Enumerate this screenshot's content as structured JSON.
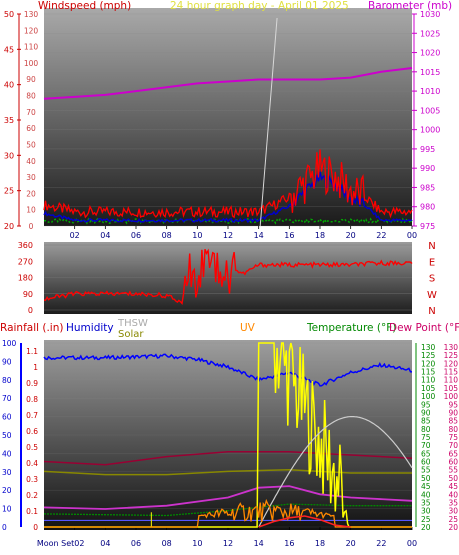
{
  "header": {
    "left_title": "Windspeed (mph)",
    "center_title": "24 hour graph day - April 01 2025",
    "right_title": "Barometer (mb)"
  },
  "legend": {
    "rainfall": "Rainfall (.in)",
    "humidity": "Humidity",
    "thsw": "THSW",
    "solar": "Solar",
    "uv": "UV",
    "temperature": "Temperature (°F)",
    "dewpoint": "Dew Point (°F)"
  },
  "colors": {
    "windspeed": "#ff0000",
    "gust": "#0000cc",
    "barometer": "#cc00cc",
    "winddir": "#ff0000",
    "humidity": "#0000ff",
    "solar": "#ffff00",
    "uv": "#ff8800",
    "temperature": "#008800",
    "dewpoint": "#cc0066"
  },
  "chart_data": [
    {
      "type": "line",
      "name": "wind-barometer",
      "x_ticks": [
        "02",
        "04",
        "06",
        "08",
        "10",
        "12",
        "14",
        "16",
        "18",
        "20",
        "22",
        "00"
      ],
      "left_axis": {
        "label": "Windspeed (mph)",
        "ticks": [
          20,
          25,
          30,
          35,
          40,
          45,
          50
        ],
        "secondary_ticks": [
          0,
          10,
          20,
          30,
          40,
          50,
          60,
          70,
          80,
          90,
          100,
          110,
          120,
          130
        ]
      },
      "right_axis": {
        "label": "Barometer (mb)",
        "ticks": [
          975,
          980,
          985,
          990,
          995,
          1000,
          1005,
          1010,
          1015,
          1020,
          1025,
          1030
        ]
      },
      "series": [
        {
          "name": "Barometer",
          "x": [
            0,
            2,
            4,
            6,
            8,
            10,
            12,
            14,
            16,
            18,
            20,
            22,
            24
          ],
          "values": [
            1008,
            1008.5,
            1009,
            1010,
            1011,
            1012,
            1012.5,
            1013,
            1013,
            1013,
            1013.5,
            1015,
            1016
          ]
        },
        {
          "name": "Windspeed",
          "x": [
            0,
            2,
            4,
            6,
            8,
            10,
            12,
            14,
            16,
            17,
            18,
            19,
            20,
            21,
            22,
            24
          ],
          "values": [
            23,
            22,
            22,
            22,
            22,
            22,
            22,
            22,
            24,
            26,
            28,
            27,
            25,
            24,
            22,
            22
          ]
        }
      ]
    },
    {
      "type": "line",
      "name": "wind-direction",
      "y_ticks_left": [
        0,
        90,
        180,
        270,
        360
      ],
      "y_labels_right": [
        "N",
        "W",
        "S",
        "E",
        "N"
      ],
      "series": [
        {
          "name": "Wind direction",
          "x": [
            0,
            2,
            4,
            6,
            8,
            9,
            9.5,
            10,
            11,
            12,
            13,
            14,
            16,
            18,
            20,
            22,
            24
          ],
          "values": [
            60,
            90,
            90,
            90,
            80,
            40,
            300,
            200,
            120,
            240,
            200,
            250,
            250,
            250,
            250,
            260,
            260
          ]
        }
      ]
    },
    {
      "type": "line",
      "name": "temperature-humidity",
      "x_ticks": [
        "Moon Set02",
        "04",
        "06",
        "08",
        "10",
        "12",
        "14",
        "16",
        "18",
        "20",
        "22",
        "00"
      ],
      "rain_axis": [
        0,
        0.1,
        0.2,
        0.3,
        0.4,
        0.5,
        0.6,
        0.7,
        0.8,
        0.9,
        1,
        1.1
      ],
      "humidity_axis": [
        0,
        10,
        20,
        30,
        40,
        50,
        60,
        70,
        80,
        90,
        100
      ],
      "temp_axis": [
        20,
        25,
        30,
        35,
        40,
        45,
        50,
        55,
        60,
        65,
        70,
        75,
        80,
        85,
        90,
        95,
        100,
        105,
        110,
        115,
        120,
        125,
        130
      ],
      "series": [
        {
          "name": "Humidity",
          "x": [
            0,
            4,
            8,
            10,
            12,
            14,
            16,
            18,
            20,
            22,
            24
          ],
          "values": [
            92,
            92,
            93,
            91,
            87,
            80,
            84,
            77,
            84,
            88,
            85
          ]
        },
        {
          "name": "Dew Point",
          "x": [
            0,
            4,
            8,
            12,
            16,
            20,
            24
          ],
          "values": [
            60,
            58,
            63,
            66,
            66,
            64,
            62
          ]
        },
        {
          "name": "Temperature",
          "x": [
            0,
            4,
            8,
            12,
            14,
            16,
            18,
            20,
            24
          ],
          "values": [
            32,
            31,
            33,
            38,
            44,
            45,
            40,
            38,
            36
          ]
        },
        {
          "name": "Solar",
          "x": [
            14,
            14.5,
            15,
            16,
            17,
            18,
            19,
            20
          ],
          "values": [
            0,
            120,
            120,
            90,
            60,
            20,
            5,
            0
          ]
        },
        {
          "name": "UV",
          "x": [
            0,
            10,
            11,
            12,
            13,
            14,
            16,
            18,
            20
          ],
          "values": [
            0,
            0,
            10,
            12,
            8,
            6,
            3,
            1,
            0
          ]
        }
      ]
    }
  ]
}
